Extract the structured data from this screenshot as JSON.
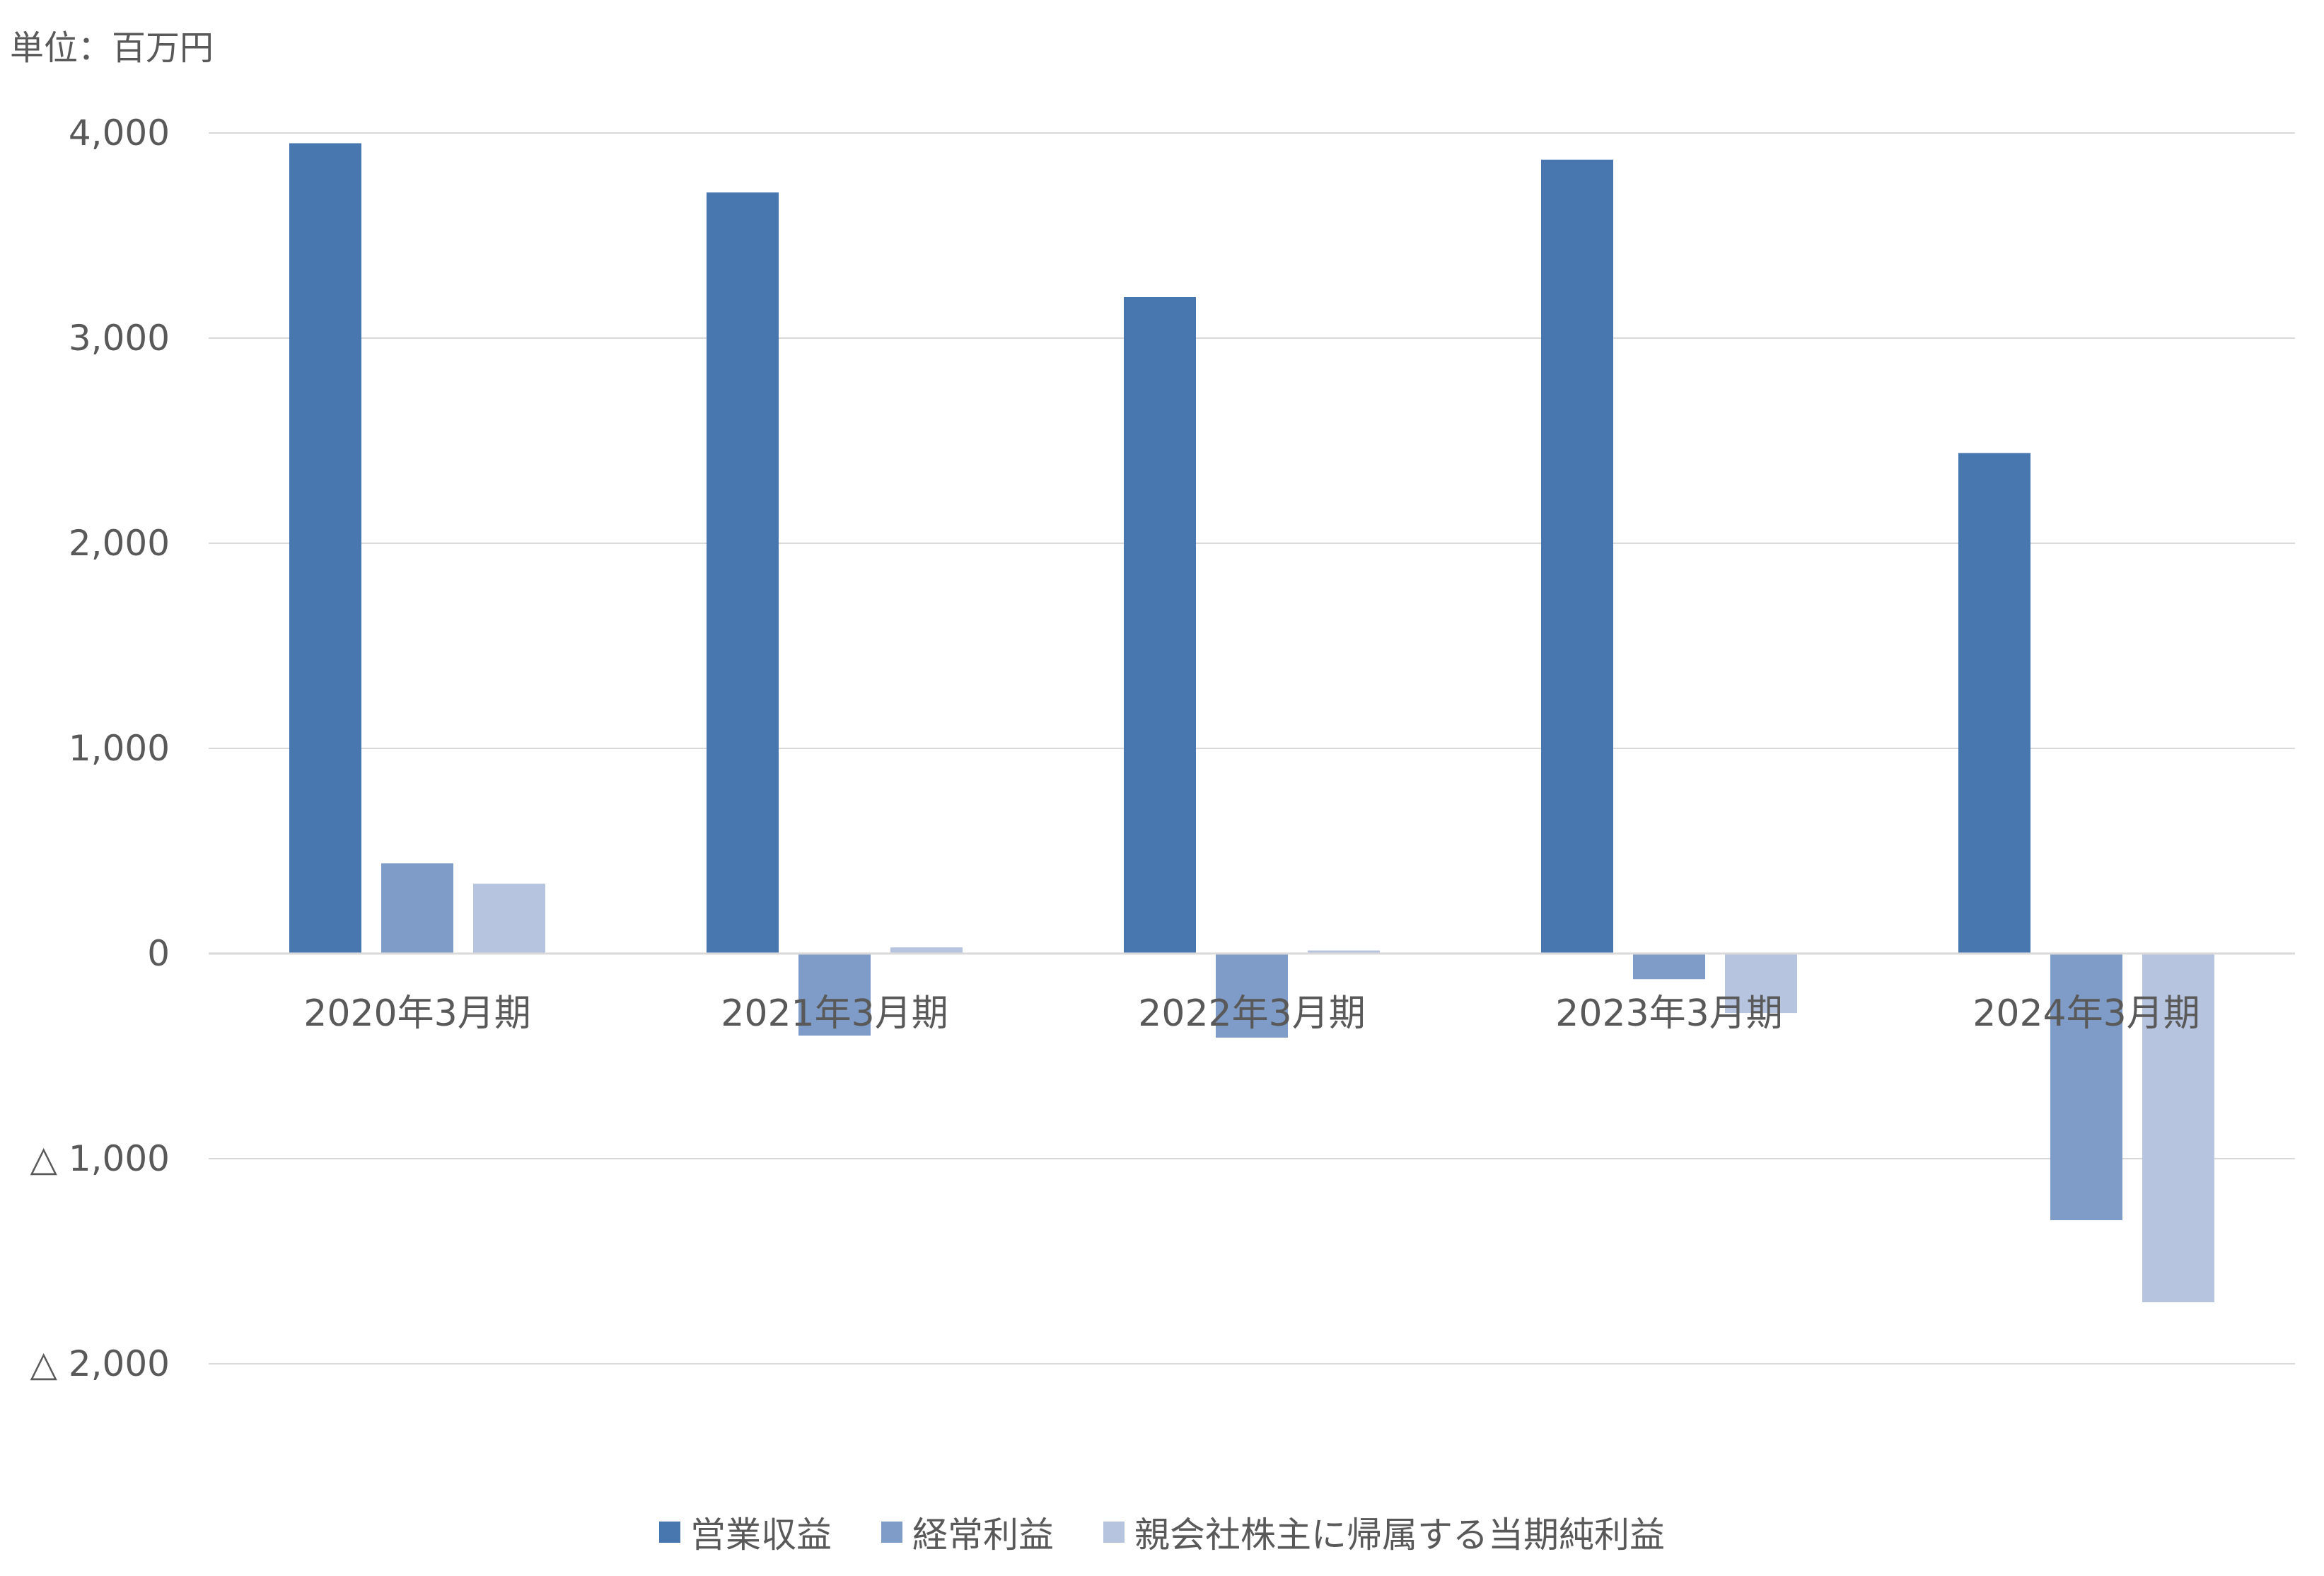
{
  "chart_data": {
    "type": "bar",
    "unit_label": "単位：百万円",
    "categories": [
      "2020年3月期",
      "2021年3月期",
      "2022年3月期",
      "2023年3月期",
      "2024年3月期"
    ],
    "series": [
      {
        "name": "営業収益",
        "color": "#4877b0",
        "values": [
          3950,
          3710,
          3200,
          3870,
          2440
        ]
      },
      {
        "name": "経常利益",
        "color": "#7f9cc8",
        "values": [
          440,
          -400,
          -410,
          -125,
          -1300
        ]
      },
      {
        "name": "親会社株主に帰属する当期純利益",
        "color": "#b6c4df",
        "values": [
          340,
          30,
          15,
          -290,
          -1700
        ]
      }
    ],
    "y_ticks": [
      {
        "value": 4000,
        "label": "4,000"
      },
      {
        "value": 3000,
        "label": "3,000"
      },
      {
        "value": 2000,
        "label": "2,000"
      },
      {
        "value": 1000,
        "label": "1,000"
      },
      {
        "value": 0,
        "label": "0"
      },
      {
        "value": -1000,
        "label": "△ 1,000"
      },
      {
        "value": -2000,
        "label": "△ 2,000"
      }
    ],
    "ylim": [
      -2000,
      4000
    ],
    "grid": true,
    "legend_position": "bottom"
  }
}
